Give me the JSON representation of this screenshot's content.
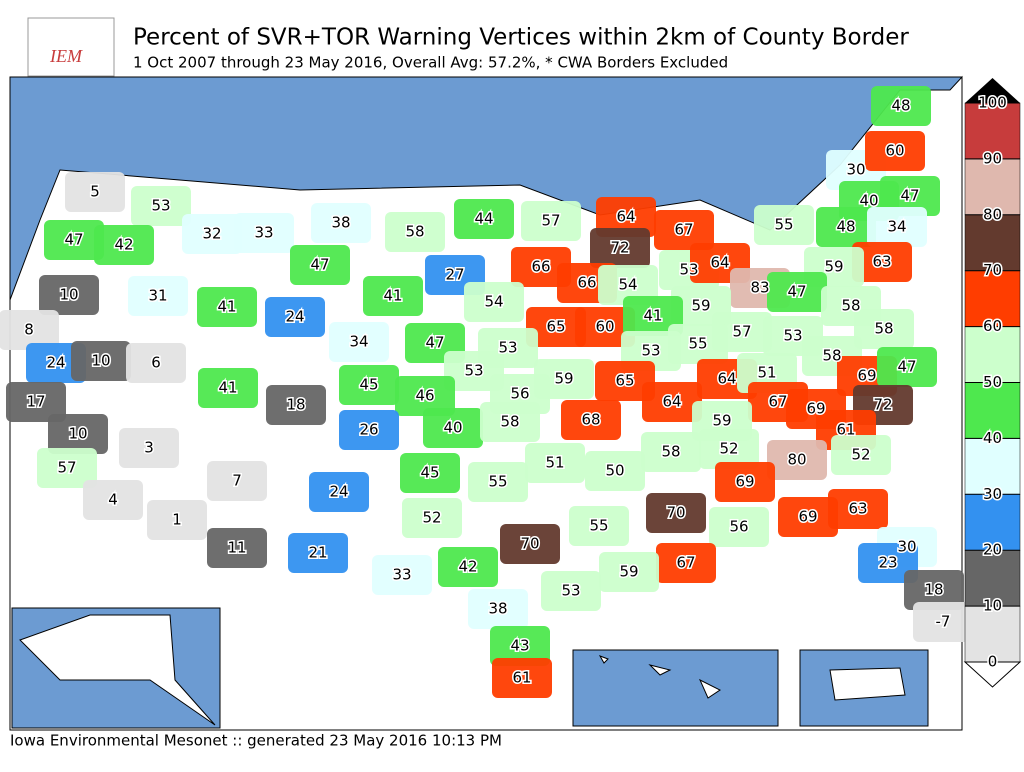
{
  "header": {
    "logo": "IEM",
    "title": "Percent of SVR+TOR Warning Vertices within 2km of County Border",
    "subtitle": "1 Oct 2007 through 23 May 2016, Overall Avg: 57.2%, * CWA Borders Excluded"
  },
  "footer": "Iowa Environmental Mesonet :: generated 23 May 2016 10:13 PM",
  "colorbar": {
    "ticks": [
      0,
      10,
      20,
      30,
      40,
      50,
      60,
      70,
      80,
      90,
      100
    ],
    "colors": [
      "#e3e3e3",
      "#666666",
      "#3391f0",
      "#e0ffff",
      "#4ee84e",
      "#ccffcc",
      "#ff3d00",
      "#633a2e",
      "#dfb8ae",
      "#c73c3c"
    ]
  },
  "map": {
    "labels": [
      5,
      53,
      32,
      33,
      38,
      58,
      44,
      57,
      64,
      67,
      30,
      48,
      60,
      47,
      40,
      55,
      48,
      34,
      47,
      42,
      72,
      63,
      59,
      66,
      66,
      53,
      64,
      47,
      27,
      10,
      31,
      41,
      54,
      54,
      83,
      47,
      58,
      41,
      24,
      59,
      8,
      65,
      60,
      41,
      57,
      53,
      58,
      24,
      10,
      6,
      34,
      47,
      53,
      53,
      55,
      58,
      45,
      53,
      59,
      65,
      64,
      51,
      69,
      47,
      17,
      41,
      18,
      46,
      56,
      64,
      67,
      69,
      72,
      26,
      40,
      58,
      68,
      59,
      61,
      10,
      3,
      58,
      52,
      80,
      52,
      57,
      51,
      50,
      45,
      7,
      55,
      69,
      24,
      4,
      63,
      1,
      52,
      70,
      55,
      70,
      56,
      69,
      11,
      21,
      30,
      42,
      67,
      59,
      23,
      33,
      53,
      18,
      38,
      -7,
      43,
      61
    ]
  }
}
